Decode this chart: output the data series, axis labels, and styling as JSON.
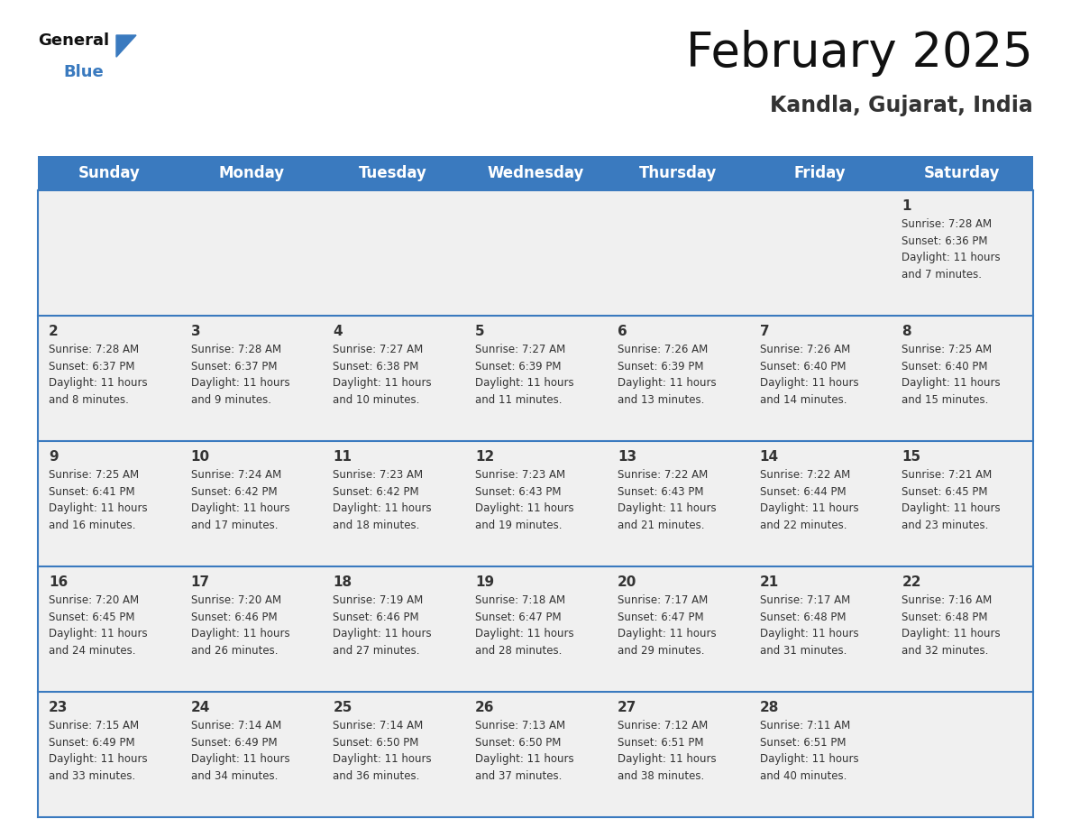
{
  "title": "February 2025",
  "subtitle": "Kandla, Gujarat, India",
  "header_color": "#3a7abf",
  "header_text_color": "#ffffff",
  "day_names": [
    "Sunday",
    "Monday",
    "Tuesday",
    "Wednesday",
    "Thursday",
    "Friday",
    "Saturday"
  ],
  "background_color": "#ffffff",
  "cell_bg": "#f0f0f0",
  "cell_border_color": "#3a7abf",
  "text_color": "#333333",
  "days": [
    {
      "day": 1,
      "col": 6,
      "row": 0,
      "sunrise": "7:28 AM",
      "sunset": "6:36 PM",
      "daylight": "11 hours and 7 minutes."
    },
    {
      "day": 2,
      "col": 0,
      "row": 1,
      "sunrise": "7:28 AM",
      "sunset": "6:37 PM",
      "daylight": "11 hours and 8 minutes."
    },
    {
      "day": 3,
      "col": 1,
      "row": 1,
      "sunrise": "7:28 AM",
      "sunset": "6:37 PM",
      "daylight": "11 hours and 9 minutes."
    },
    {
      "day": 4,
      "col": 2,
      "row": 1,
      "sunrise": "7:27 AM",
      "sunset": "6:38 PM",
      "daylight": "11 hours and 10 minutes."
    },
    {
      "day": 5,
      "col": 3,
      "row": 1,
      "sunrise": "7:27 AM",
      "sunset": "6:39 PM",
      "daylight": "11 hours and 11 minutes."
    },
    {
      "day": 6,
      "col": 4,
      "row": 1,
      "sunrise": "7:26 AM",
      "sunset": "6:39 PM",
      "daylight": "11 hours and 13 minutes."
    },
    {
      "day": 7,
      "col": 5,
      "row": 1,
      "sunrise": "7:26 AM",
      "sunset": "6:40 PM",
      "daylight": "11 hours and 14 minutes."
    },
    {
      "day": 8,
      "col": 6,
      "row": 1,
      "sunrise": "7:25 AM",
      "sunset": "6:40 PM",
      "daylight": "11 hours and 15 minutes."
    },
    {
      "day": 9,
      "col": 0,
      "row": 2,
      "sunrise": "7:25 AM",
      "sunset": "6:41 PM",
      "daylight": "11 hours and 16 minutes."
    },
    {
      "day": 10,
      "col": 1,
      "row": 2,
      "sunrise": "7:24 AM",
      "sunset": "6:42 PM",
      "daylight": "11 hours and 17 minutes."
    },
    {
      "day": 11,
      "col": 2,
      "row": 2,
      "sunrise": "7:23 AM",
      "sunset": "6:42 PM",
      "daylight": "11 hours and 18 minutes."
    },
    {
      "day": 12,
      "col": 3,
      "row": 2,
      "sunrise": "7:23 AM",
      "sunset": "6:43 PM",
      "daylight": "11 hours and 19 minutes."
    },
    {
      "day": 13,
      "col": 4,
      "row": 2,
      "sunrise": "7:22 AM",
      "sunset": "6:43 PM",
      "daylight": "11 hours and 21 minutes."
    },
    {
      "day": 14,
      "col": 5,
      "row": 2,
      "sunrise": "7:22 AM",
      "sunset": "6:44 PM",
      "daylight": "11 hours and 22 minutes."
    },
    {
      "day": 15,
      "col": 6,
      "row": 2,
      "sunrise": "7:21 AM",
      "sunset": "6:45 PM",
      "daylight": "11 hours and 23 minutes."
    },
    {
      "day": 16,
      "col": 0,
      "row": 3,
      "sunrise": "7:20 AM",
      "sunset": "6:45 PM",
      "daylight": "11 hours and 24 minutes."
    },
    {
      "day": 17,
      "col": 1,
      "row": 3,
      "sunrise": "7:20 AM",
      "sunset": "6:46 PM",
      "daylight": "11 hours and 26 minutes."
    },
    {
      "day": 18,
      "col": 2,
      "row": 3,
      "sunrise": "7:19 AM",
      "sunset": "6:46 PM",
      "daylight": "11 hours and 27 minutes."
    },
    {
      "day": 19,
      "col": 3,
      "row": 3,
      "sunrise": "7:18 AM",
      "sunset": "6:47 PM",
      "daylight": "11 hours and 28 minutes."
    },
    {
      "day": 20,
      "col": 4,
      "row": 3,
      "sunrise": "7:17 AM",
      "sunset": "6:47 PM",
      "daylight": "11 hours and 29 minutes."
    },
    {
      "day": 21,
      "col": 5,
      "row": 3,
      "sunrise": "7:17 AM",
      "sunset": "6:48 PM",
      "daylight": "11 hours and 31 minutes."
    },
    {
      "day": 22,
      "col": 6,
      "row": 3,
      "sunrise": "7:16 AM",
      "sunset": "6:48 PM",
      "daylight": "11 hours and 32 minutes."
    },
    {
      "day": 23,
      "col": 0,
      "row": 4,
      "sunrise": "7:15 AM",
      "sunset": "6:49 PM",
      "daylight": "11 hours and 33 minutes."
    },
    {
      "day": 24,
      "col": 1,
      "row": 4,
      "sunrise": "7:14 AM",
      "sunset": "6:49 PM",
      "daylight": "11 hours and 34 minutes."
    },
    {
      "day": 25,
      "col": 2,
      "row": 4,
      "sunrise": "7:14 AM",
      "sunset": "6:50 PM",
      "daylight": "11 hours and 36 minutes."
    },
    {
      "day": 26,
      "col": 3,
      "row": 4,
      "sunrise": "7:13 AM",
      "sunset": "6:50 PM",
      "daylight": "11 hours and 37 minutes."
    },
    {
      "day": 27,
      "col": 4,
      "row": 4,
      "sunrise": "7:12 AM",
      "sunset": "6:51 PM",
      "daylight": "11 hours and 38 minutes."
    },
    {
      "day": 28,
      "col": 5,
      "row": 4,
      "sunrise": "7:11 AM",
      "sunset": "6:51 PM",
      "daylight": "11 hours and 40 minutes."
    }
  ],
  "num_rows": 5,
  "num_cols": 7,
  "logo_text_general": "General",
  "logo_text_blue": "Blue",
  "logo_triangle_color": "#3a7abf",
  "title_fontsize": 38,
  "subtitle_fontsize": 17,
  "header_fontsize": 12,
  "day_num_fontsize": 11,
  "cell_text_fontsize": 8.5
}
